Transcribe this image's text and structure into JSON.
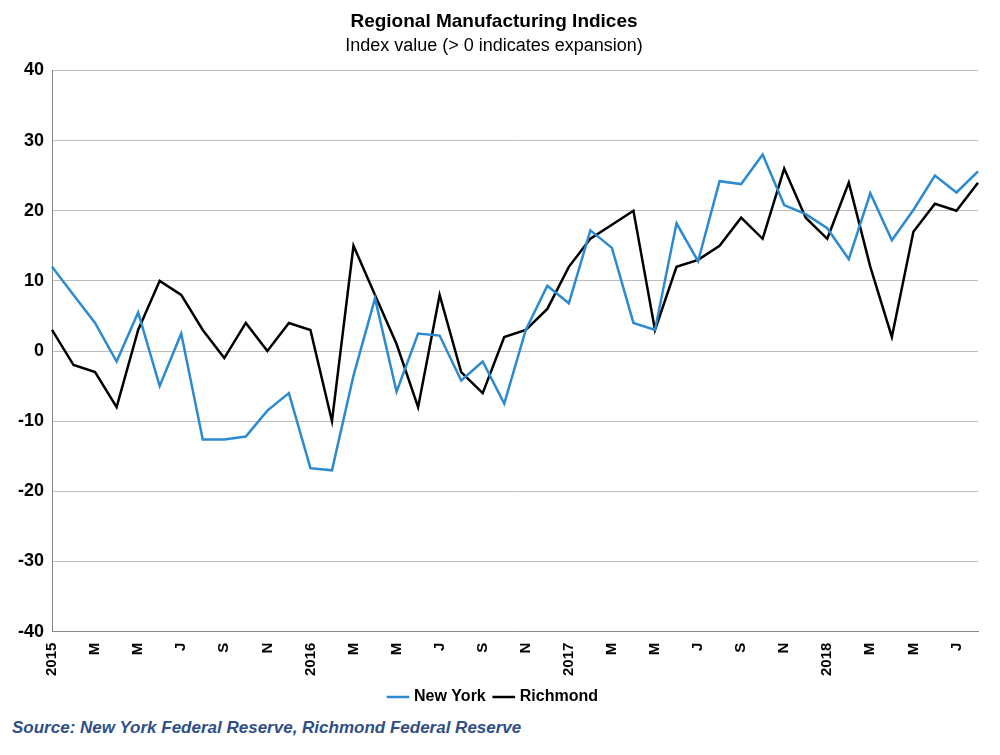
{
  "chart_data": {
    "type": "line",
    "title": "Regional Manufacturing Indices",
    "subtitle": "Index value (> 0 indicates expansion)",
    "source": "Source: New York Federal Reserve, Richmond Federal Reserve",
    "categories": [
      "2015",
      null,
      "M",
      null,
      "M",
      null,
      "J",
      null,
      "S",
      null,
      "N",
      null,
      "2016",
      null,
      "M",
      null,
      "M",
      null,
      "J",
      null,
      "S",
      null,
      "N",
      null,
      "2017",
      null,
      "M",
      null,
      "M",
      null,
      "J",
      null,
      "S",
      null,
      "N",
      null,
      "2018",
      null,
      "M",
      null,
      "M",
      null,
      "J",
      null
    ],
    "series": [
      {
        "name": "New York",
        "color": "#2b8ad0",
        "values": [
          12,
          8,
          4,
          -1.5,
          5.5,
          -5,
          2.5,
          -12.6,
          -12.6,
          -12.2,
          -8.5,
          -6,
          -16.7,
          -17,
          -3.5,
          7.5,
          -5.8,
          2.5,
          2.2,
          -4.2,
          -1.5,
          -7.5,
          3,
          9.3,
          6.8,
          17.2,
          14.7,
          4,
          3,
          18.2,
          12.8,
          24.2,
          23.8,
          28,
          20.8,
          19.5,
          17.5,
          13.1,
          22.5,
          15.8,
          20.1,
          25,
          22.6,
          25.6
        ]
      },
      {
        "name": "Richmond",
        "color": "#000000",
        "values": [
          3,
          -2,
          -3,
          -8,
          3,
          10,
          8,
          3,
          -1,
          4,
          0,
          4,
          3,
          -10,
          15,
          8,
          1,
          -8,
          8,
          -3,
          -6,
          2,
          3,
          6,
          12,
          16,
          18,
          20,
          3,
          12,
          13,
          15,
          19,
          16,
          26,
          19,
          16,
          24,
          12,
          2,
          17,
          21,
          20,
          24
        ]
      }
    ],
    "ylim": [
      -40,
      40
    ],
    "yticks": [
      -40,
      -30,
      -20,
      -10,
      0,
      10,
      20,
      30,
      40
    ],
    "grid": true,
    "legend": "bottom"
  }
}
